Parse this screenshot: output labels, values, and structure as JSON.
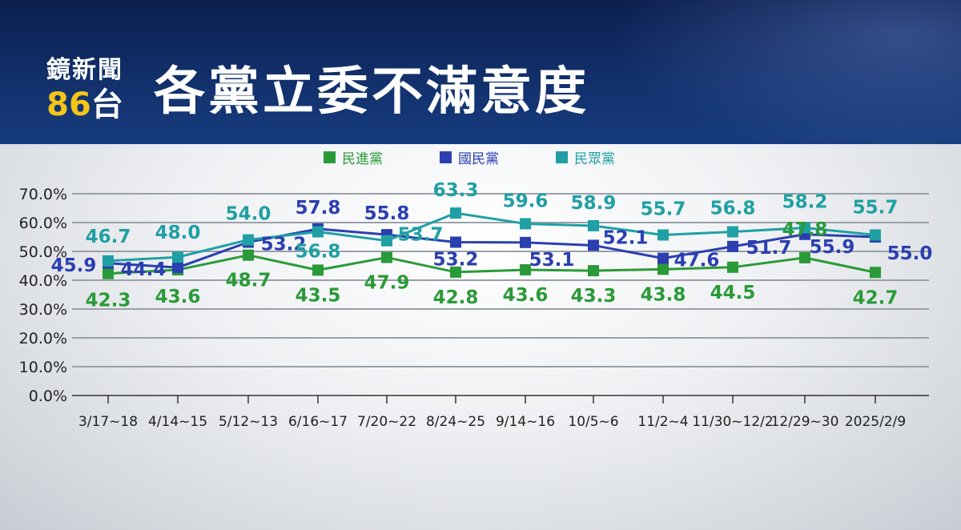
{
  "header": {
    "brand_name": "鏡新聞",
    "brand_channel_num": "86",
    "brand_channel_suffix": "台",
    "title": "各黨立委不滿意度"
  },
  "colors": {
    "dpp": "#2a9a38",
    "kmt": "#2b3fb0",
    "tpp": "#1fa0a4"
  },
  "chart_data": {
    "type": "line",
    "title": "各黨立委不滿意度",
    "xlabel": "",
    "ylabel": "",
    "categories": [
      "3/17~18",
      "4/14~15",
      "5/12~13",
      "6/16~17",
      "7/20~22",
      "8/24~25",
      "9/14~16",
      "10/5~6",
      "11/2~4",
      "11/30~12/2",
      "12/29~30",
      "2025/2/9"
    ],
    "ylim": [
      0,
      70
    ],
    "yticks": [
      "0.0%",
      "10.0%",
      "20.0%",
      "30.0%",
      "40.0%",
      "50.0%",
      "60.0%",
      "70.0%"
    ],
    "grid": true,
    "legend_position": "top-center",
    "series": [
      {
        "name": "民進黨",
        "color": "#2a9a38",
        "values": [
          42.3,
          43.6,
          48.7,
          43.5,
          47.9,
          42.8,
          43.6,
          43.3,
          43.8,
          44.5,
          47.8,
          42.7
        ]
      },
      {
        "name": "國民黨",
        "color": "#2b3fb0",
        "values": [
          45.9,
          44.4,
          53.2,
          57.8,
          55.8,
          53.2,
          53.1,
          52.1,
          47.6,
          51.7,
          55.9,
          55.0
        ]
      },
      {
        "name": "民眾黨",
        "color": "#1fa0a4",
        "values": [
          46.7,
          48.0,
          54.0,
          56.8,
          53.7,
          63.3,
          59.6,
          58.9,
          55.7,
          56.8,
          58.2,
          55.7
        ]
      }
    ]
  }
}
